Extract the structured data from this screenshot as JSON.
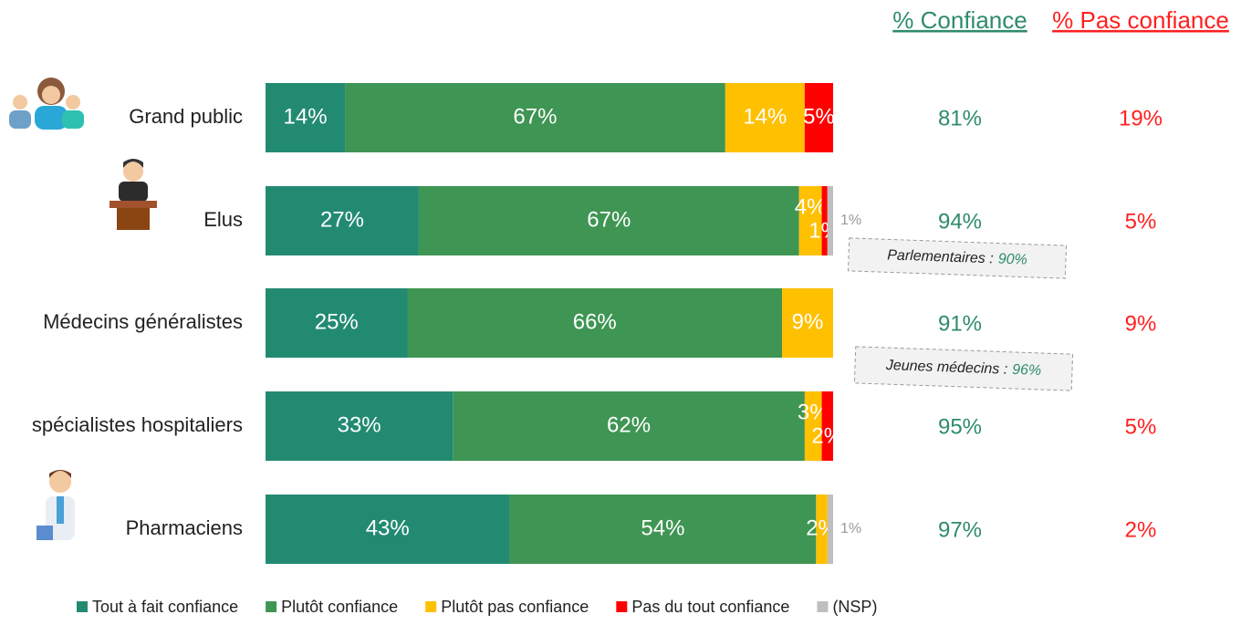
{
  "chart_data": {
    "type": "stacked-bar-horizontal",
    "categories": [
      "Grand public",
      "Elus",
      "Médecins généralistes",
      "spécialistes hospitaliers",
      "Pharmaciens"
    ],
    "xlim": [
      0,
      100
    ],
    "series": [
      {
        "name": "Tout à fait confiance",
        "color": "#238a72",
        "values": [
          14,
          27,
          25,
          33,
          43
        ],
        "value_labels": [
          "14%",
          "27%",
          "25%",
          "33%",
          "43%"
        ]
      },
      {
        "name": "Plutôt confiance",
        "color": "#3f9553",
        "values": [
          67,
          67,
          66,
          62,
          54
        ],
        "value_labels": [
          "67%",
          "67%",
          "66%",
          "62%",
          "54%"
        ]
      },
      {
        "name": "Plutôt pas confiance",
        "color": "#ffc000",
        "values": [
          14,
          4,
          9,
          3,
          2
        ],
        "value_labels": [
          "14%",
          "4%",
          "9%",
          "3%",
          "2%"
        ]
      },
      {
        "name": "Pas du tout confiance",
        "color": "#ff0000",
        "values": [
          5,
          1,
          null,
          2,
          null
        ],
        "value_labels": [
          "5%",
          "1%",
          null,
          "2%",
          null
        ]
      },
      {
        "name": "(NSP)",
        "color": "#bfbfbf",
        "values": [
          null,
          1,
          null,
          null,
          1
        ],
        "value_labels": [
          null,
          "1%",
          null,
          null,
          "1%"
        ]
      }
    ],
    "columns": [
      {
        "title": "% Confiance",
        "color": "#2e8b6e",
        "values": [
          81,
          94,
          91,
          95,
          97
        ],
        "value_labels": [
          "81%",
          "94%",
          "91%",
          "95%",
          "97%"
        ]
      },
      {
        "title": "% Pas confiance",
        "color": "#ff2020",
        "values": [
          19,
          5,
          9,
          5,
          2
        ],
        "value_labels": [
          "19%",
          "5%",
          "9%",
          "5%",
          "2%"
        ]
      }
    ],
    "annotations": [
      {
        "text": "Parlementaires :",
        "value": 90,
        "value_label": "90%"
      },
      {
        "text": "Jeunes médecins :",
        "value": 96,
        "value_label": "96%"
      }
    ]
  }
}
